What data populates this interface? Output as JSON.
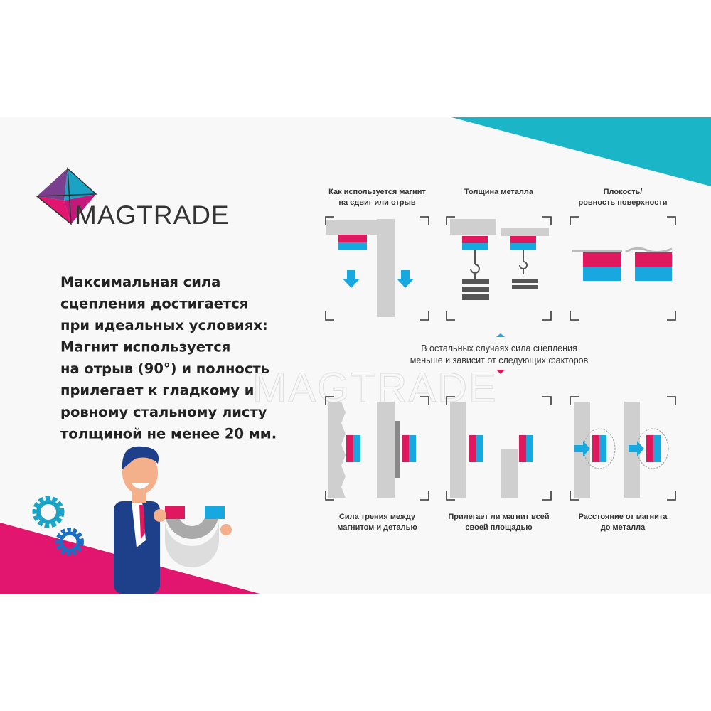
{
  "brand": "MAGTRADE",
  "headline": [
    "Максимальная сила",
    "сцепления достигается",
    "при идеальных условиях:",
    "Магнит используется",
    "на отрыв (90°) и полность",
    "прилегает к гладкому и",
    "ровному стальному листу",
    "толщиной не менее 20 мм."
  ],
  "top_panels": [
    {
      "caption": [
        "Как используется магнит",
        "на сдвиг или отрыв"
      ]
    },
    {
      "caption": [
        "Толщина металла"
      ]
    },
    {
      "caption": [
        "Плокость/",
        "ровность поверхности"
      ]
    }
  ],
  "note": [
    "В остальных случаях сила сцепления",
    "меньше и зависит от следующих факторов"
  ],
  "bottom_panels": [
    {
      "caption": [
        "Сила трения между",
        "магнитом и деталью"
      ]
    },
    {
      "caption": [
        "Прилегает ли магнит всей",
        "своей площадью"
      ]
    },
    {
      "caption": [
        "Расстояние от магнита",
        "до металла"
      ]
    }
  ]
}
